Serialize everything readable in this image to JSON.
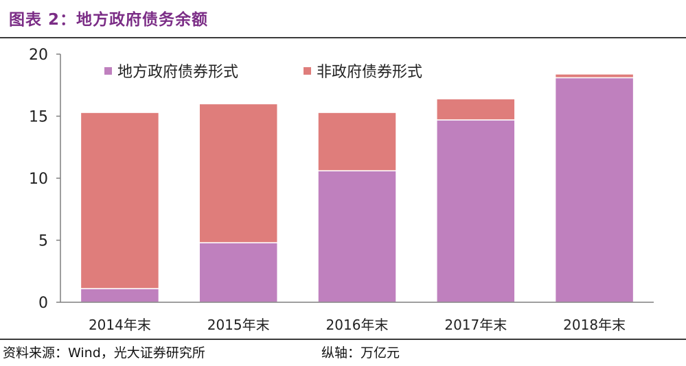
{
  "header": {
    "title": "图表 2：地方政府债务余额"
  },
  "footer": {
    "source": "资料来源：Wind，光大证券研究所",
    "unit": "纵轴：万亿元"
  },
  "colors": {
    "local_bond": "#bf80be",
    "non_bond": "#df7d7b",
    "title": "#7b2d86",
    "axis": "#7f7f7f"
  },
  "chart_data": {
    "type": "bar",
    "stacked": true,
    "title": "地方政府债务余额",
    "categories": [
      "2014年末",
      "2015年末",
      "2016年末",
      "2017年末",
      "2018年末"
    ],
    "series": [
      {
        "name": "地方政府债券形式",
        "values": [
          1.1,
          4.8,
          10.6,
          14.7,
          18.1
        ]
      },
      {
        "name": "非政府债券形式",
        "values": [
          14.2,
          11.2,
          4.7,
          1.7,
          0.3
        ]
      }
    ],
    "yticks": [
      0,
      5,
      10,
      15,
      20
    ],
    "ylim": [
      0,
      20
    ],
    "grid": false,
    "legend": "top-left"
  }
}
